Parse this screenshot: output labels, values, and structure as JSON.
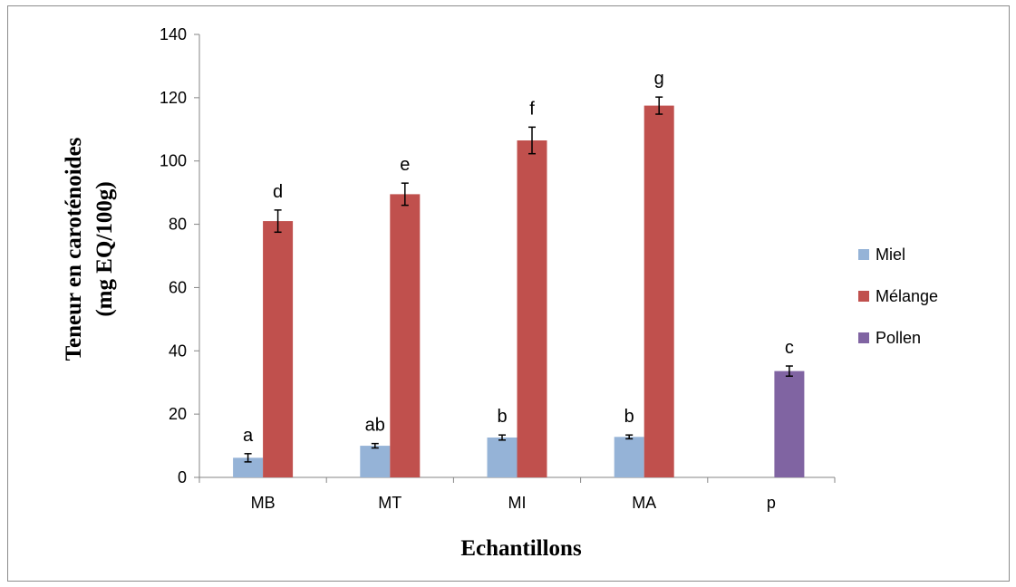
{
  "chart_data": {
    "type": "bar",
    "categories": [
      "MB",
      "MT",
      "MI",
      "MA",
      "p"
    ],
    "series": [
      {
        "name": "Miel",
        "color": "#95b3d7",
        "values": [
          6.2,
          10.0,
          12.6,
          12.8,
          null
        ],
        "errors": [
          1.3,
          0.7,
          0.8,
          0.6,
          null
        ],
        "labels": [
          "a",
          "ab",
          "b",
          "b",
          null
        ]
      },
      {
        "name": "Mélange",
        "color": "#c0504d",
        "values": [
          81,
          89.5,
          106.5,
          117.5,
          null
        ],
        "errors": [
          3.5,
          3.5,
          4.2,
          2.7,
          null
        ],
        "labels": [
          "d",
          "e",
          "f",
          "g",
          null
        ]
      },
      {
        "name": "Pollen",
        "color": "#8064a2",
        "values": [
          null,
          null,
          null,
          null,
          33.6
        ],
        "errors": [
          null,
          null,
          null,
          null,
          1.6
        ],
        "labels": [
          null,
          null,
          null,
          null,
          "c"
        ]
      }
    ],
    "xlabel": "Echantillons",
    "ylabel_lines": [
      "Teneur en caroténoides",
      "(mg EQ/100g)"
    ],
    "ylim": [
      0,
      140
    ],
    "yticks": [
      "0",
      "20",
      "40",
      "60",
      "80",
      "100",
      "120",
      "140"
    ],
    "grid": false,
    "legend_position": "right"
  }
}
